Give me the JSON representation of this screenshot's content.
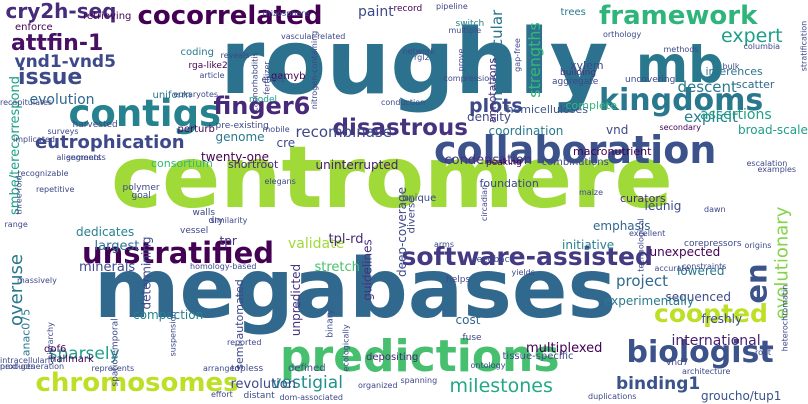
{
  "cloud": {
    "background": "#ffffff",
    "words": [
      {
        "text": "centromere",
        "color": "#a0da39"
      },
      {
        "text": "megabases",
        "color": "#31688e"
      },
      {
        "text": "roughly",
        "color": "#2c728e"
      },
      {
        "text": "mb",
        "color": "#2a788e"
      },
      {
        "text": "predictions",
        "color": "#46c06f"
      },
      {
        "text": "collaboration",
        "color": "#3b528b"
      },
      {
        "text": "contigs",
        "color": "#26828e"
      },
      {
        "text": "kingdoms",
        "color": "#2a788e"
      },
      {
        "text": "unstratified",
        "color": "#440154"
      },
      {
        "text": "software-assisted",
        "color": "#443983"
      },
      {
        "text": "chromosomes",
        "color": "#bddf26"
      },
      {
        "text": "biologist",
        "color": "#3b528b"
      },
      {
        "text": "cocorrelated",
        "color": "#440154"
      },
      {
        "text": "framework",
        "color": "#2fb47c"
      },
      {
        "text": "coopted",
        "color": "#bddf26"
      },
      {
        "text": "finger6",
        "color": "#482878"
      },
      {
        "text": "disastrous",
        "color": "#46327e"
      },
      {
        "text": "attfin-1",
        "color": "#471063"
      },
      {
        "text": "issue",
        "color": "#3e4989"
      },
      {
        "text": "en",
        "color": "#3b528b"
      },
      {
        "text": "cry2h-seq",
        "color": "#472c7a"
      },
      {
        "text": "vnd1-vnd5",
        "color": "#3e4989"
      },
      {
        "text": "eutrophication",
        "color": "#3e4989"
      },
      {
        "text": "plots",
        "color": "#3e4989"
      },
      {
        "text": "milestones",
        "color": "#22a884"
      },
      {
        "text": "expert",
        "color": "#1f9e89"
      },
      {
        "text": "vestigial",
        "color": "#21918c"
      },
      {
        "text": "sparsely",
        "color": "#1f9e89"
      },
      {
        "text": "binding1",
        "color": "#3b528b"
      },
      {
        "text": "evolutionary",
        "color": "#84d44b"
      },
      {
        "text": "overuse",
        "color": "#2a788e"
      },
      {
        "text": "smbe/terecorrespond",
        "color": "#1fa188"
      },
      {
        "text": "recombinase",
        "color": "#3e4989"
      },
      {
        "text": "evolution",
        "color": "#31688e"
      },
      {
        "text": "explicit",
        "color": "#26828e"
      },
      {
        "text": "descent",
        "color": "#2a788e"
      },
      {
        "text": "assertions",
        "color": "#1f9e89"
      },
      {
        "text": "international",
        "color": "#481f70"
      },
      {
        "text": "project",
        "color": "#31688e"
      },
      {
        "text": "groucho/tup1",
        "color": "#3b528b"
      },
      {
        "text": "strengths",
        "color": "#35b779"
      },
      {
        "text": "nonvascular",
        "color": "#2c728e"
      },
      {
        "text": "paint",
        "color": "#3e4989"
      },
      {
        "text": "validate",
        "color": "#a0da39"
      },
      {
        "text": "stretch",
        "color": "#4ac16d"
      },
      {
        "text": "tpl-rd",
        "color": "#482878"
      },
      {
        "text": "multiplexed",
        "color": "#440154"
      },
      {
        "text": "condensation",
        "color": "#46327e"
      },
      {
        "text": "uninterrupted",
        "color": "#481f70"
      },
      {
        "text": "guidelines",
        "color": "#46327e"
      },
      {
        "text": "deep-coverage",
        "color": "#3e4989"
      },
      {
        "text": "revolution",
        "color": "#3e4989"
      },
      {
        "text": "largest",
        "color": "#2c728e"
      },
      {
        "text": "dedicates",
        "color": "#26828e"
      },
      {
        "text": "minerals",
        "color": "#3e4989"
      },
      {
        "text": "genome",
        "color": "#2a788e"
      },
      {
        "text": "twenty-one",
        "color": "#440154"
      },
      {
        "text": "shortroot",
        "color": "#472d7b"
      },
      {
        "text": "consortium",
        "color": "#35b779"
      },
      {
        "text": "sequenced",
        "color": "#3e4989"
      },
      {
        "text": "lowered",
        "color": "#2a788e"
      },
      {
        "text": "emphasis",
        "color": "#31688e"
      },
      {
        "text": "initiative",
        "color": "#26828e"
      },
      {
        "text": "unexpected",
        "color": "#440154"
      },
      {
        "text": "experimentally",
        "color": "#2a788e"
      },
      {
        "text": "freshly",
        "color": "#3e4989"
      },
      {
        "text": "leunig",
        "color": "#3e4989"
      },
      {
        "text": "curators",
        "color": "#472c7a"
      },
      {
        "text": "broad-scale",
        "color": "#1f9e89"
      },
      {
        "text": "coordination",
        "color": "#2a788e"
      },
      {
        "text": "density",
        "color": "#3e4989"
      },
      {
        "text": "hemicelluloses",
        "color": "#3b528b"
      },
      {
        "text": "annotations",
        "color": "#46327e"
      },
      {
        "text": "complete",
        "color": "#35b779"
      },
      {
        "text": "xylem",
        "color": "#3e4989"
      },
      {
        "text": "inferences",
        "color": "#2c728e"
      },
      {
        "text": "scatter",
        "color": "#31688e"
      },
      {
        "text": "retrieving",
        "color": "#440154"
      },
      {
        "text": "enforce",
        "color": "#440154"
      },
      {
        "text": "uniform",
        "color": "#2a788e"
      },
      {
        "text": "perturb",
        "color": "#440154"
      },
      {
        "text": "coding",
        "color": "#2a788e"
      },
      {
        "text": "rga-like2",
        "color": "#440154"
      },
      {
        "text": "gamyb",
        "color": "#440154"
      },
      {
        "text": "model",
        "color": "#1f9e89"
      },
      {
        "text": "compaction",
        "color": "#26828e"
      },
      {
        "text": "cost",
        "color": "#31688e"
      },
      {
        "text": "semi-automated",
        "color": "#3e4989"
      },
      {
        "text": "unpredicted",
        "color": "#46327e"
      },
      {
        "text": "tpr",
        "color": "#46327e"
      },
      {
        "text": "determining",
        "color": "#3e4989"
      },
      {
        "text": "anac075",
        "color": "#2a788e"
      },
      {
        "text": "dof6",
        "color": "#440154"
      },
      {
        "text": "hallmark",
        "color": "#440154"
      },
      {
        "text": "topless",
        "color": "#3e4989"
      },
      {
        "text": "defined",
        "color": "#3e4989"
      },
      {
        "text": "depositing",
        "color": "#482878"
      },
      {
        "text": "tissue-specific",
        "color": "#3e4989"
      },
      {
        "text": "vnd7",
        "color": "#3e4989"
      },
      {
        "text": "record",
        "color": "#440154"
      },
      {
        "text": "switch",
        "color": "#26828e"
      },
      {
        "text": "trees",
        "color": "#2a788e"
      },
      {
        "text": "vnd",
        "color": "#3e4989"
      },
      {
        "text": "macronutrient",
        "color": "#440154"
      },
      {
        "text": "peaking",
        "color": "#440154"
      },
      {
        "text": "foundation",
        "color": "#3e4989"
      },
      {
        "text": "combinations",
        "color": "#3e4989"
      },
      {
        "text": "harvested",
        "color": "#3e4989"
      },
      {
        "text": "secondary",
        "color": "#440154"
      },
      {
        "text": "aggregate",
        "color": "#3e4989"
      },
      {
        "text": "building",
        "color": "#46327e"
      },
      {
        "text": "uncovering",
        "color": "#3e4989"
      },
      {
        "text": "methods",
        "color": "#3e4989"
      },
      {
        "text": "columbia",
        "color": "#3e4989"
      },
      {
        "text": "cre",
        "color": "#3e4989"
      },
      {
        "text": "fuse",
        "color": "#3e4989"
      },
      {
        "text": "polymer",
        "color": "#3e4989"
      },
      {
        "text": "goal",
        "color": "#3e4989"
      },
      {
        "text": "walls",
        "color": "#3e4989"
      },
      {
        "text": "dry",
        "color": "#3e4989"
      },
      {
        "text": "vessel",
        "color": "#3e4989"
      },
      {
        "text": "unique",
        "color": "#3e4989"
      },
      {
        "text": "diverse",
        "color": "#3e4989"
      },
      {
        "text": "binary",
        "color": "#3e4989"
      },
      {
        "text": "arms",
        "color": "#3e4989"
      },
      {
        "text": "feedback",
        "color": "#3e4989"
      },
      {
        "text": "yields",
        "color": "#3e4989"
      },
      {
        "text": "examples",
        "color": "#3e4989"
      },
      {
        "text": "constraints",
        "color": "#3e4989"
      },
      {
        "text": "corepressors",
        "color": "#3e4989"
      },
      {
        "text": "architecture",
        "color": "#3e4989"
      },
      {
        "text": "duplications",
        "color": "#3e4989"
      },
      {
        "text": "products",
        "color": "#3e4989"
      },
      {
        "text": "next-generation",
        "color": "#3e4989"
      },
      {
        "text": "represents",
        "color": "#3e4989"
      },
      {
        "text": "massively",
        "color": "#3e4989"
      },
      {
        "text": "repetitive",
        "color": "#3e4989"
      },
      {
        "text": "recognizable",
        "color": "#3e4989"
      },
      {
        "text": "alignments",
        "color": "#3e4989"
      },
      {
        "text": "segments",
        "color": "#3e4989"
      },
      {
        "text": "pipeline",
        "color": "#3e4989"
      },
      {
        "text": "multiple",
        "color": "#3e4989"
      },
      {
        "text": "prove",
        "color": "#3e4989"
      },
      {
        "text": "conduction",
        "color": "#3e4989"
      },
      {
        "text": "eukaryotes",
        "color": "#3e4989"
      },
      {
        "text": "caenorhabditis",
        "color": "#3e4989"
      },
      {
        "text": "fertilizer",
        "color": "#3e4989"
      },
      {
        "text": "nitrogen-containing",
        "color": "#3e4989"
      },
      {
        "text": "gap-free",
        "color": "#3e4989"
      },
      {
        "text": "stratification",
        "color": "#3e4989"
      },
      {
        "text": "heterochromatin",
        "color": "#3e4989"
      },
      {
        "text": "reported",
        "color": "#3e4989"
      },
      {
        "text": "arranged",
        "color": "#3e4989"
      },
      {
        "text": "ecologically",
        "color": "#3e4989"
      },
      {
        "text": "ontology",
        "color": "#3e4989"
      },
      {
        "text": "spatiotemporal",
        "color": "#3e4989"
      },
      {
        "text": "intracellularly",
        "color": "#3e4989"
      },
      {
        "text": "hierarchy",
        "color": "#3e4989"
      },
      {
        "text": "suspension",
        "color": "#3e4989"
      },
      {
        "text": "reveals",
        "color": "#3e4989"
      },
      {
        "text": "article",
        "color": "#3e4989"
      },
      {
        "text": "pre-existing",
        "color": "#3e4989"
      },
      {
        "text": "mobile",
        "color": "#3e4989"
      },
      {
        "text": "recapitulates",
        "color": "#3e4989"
      },
      {
        "text": "similarity",
        "color": "#3e4989"
      },
      {
        "text": "elegans",
        "color": "#3e4989"
      },
      {
        "text": "effort",
        "color": "#3e4989"
      },
      {
        "text": "range",
        "color": "#3e4989"
      },
      {
        "text": "excellent",
        "color": "#3e4989"
      },
      {
        "text": "orthology",
        "color": "#3e4989"
      },
      {
        "text": "compression",
        "color": "#3e4989"
      },
      {
        "text": "network",
        "color": "#3e4989"
      },
      {
        "text": "accurate",
        "color": "#3e4989"
      },
      {
        "text": "escalation",
        "color": "#3e4989"
      },
      {
        "text": "origins",
        "color": "#3e4989"
      },
      {
        "text": "technological",
        "color": "#3e4989"
      },
      {
        "text": "organized",
        "color": "#3e4989"
      },
      {
        "text": "distant",
        "color": "#3e4989"
      },
      {
        "text": "spanning",
        "color": "#3e4989"
      },
      {
        "text": "surveys",
        "color": "#3e4989"
      },
      {
        "text": "implicated",
        "color": "#3e4989"
      },
      {
        "text": "maize",
        "color": "#3e4989"
      },
      {
        "text": "rgl2",
        "color": "#3e4989"
      },
      {
        "text": "root",
        "color": "#3e4989"
      },
      {
        "text": "homology-based",
        "color": "#3e4989"
      },
      {
        "text": "vascular-related",
        "color": "#3e4989"
      },
      {
        "text": "rhizosphere",
        "color": "#3e4989"
      },
      {
        "text": "effect",
        "color": "#3e4989"
      },
      {
        "text": "bulk",
        "color": "#3e4989"
      },
      {
        "text": "helps",
        "color": "#3e4989"
      },
      {
        "text": "dom-associated",
        "color": "#3e4989"
      },
      {
        "text": "circadian",
        "color": "#3e4989"
      },
      {
        "text": "three-fold",
        "color": "#3e4989"
      },
      {
        "text": "dawn",
        "color": "#3e4989"
      }
    ]
  }
}
